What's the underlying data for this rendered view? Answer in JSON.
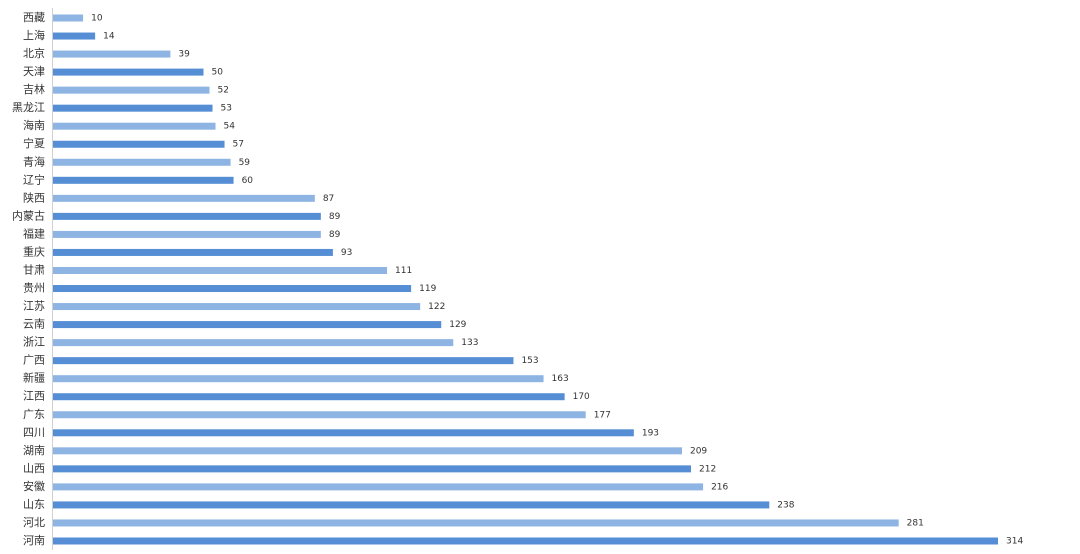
{
  "chart_data": {
    "type": "bar",
    "orientation": "horizontal",
    "categories": [
      "西藏",
      "上海",
      "北京",
      "天津",
      "吉林",
      "黑龙江",
      "海南",
      "宁夏",
      "青海",
      "辽宁",
      "陕西",
      "内蒙古",
      "福建",
      "重庆",
      "甘肃",
      "贵州",
      "江苏",
      "云南",
      "浙江",
      "广西",
      "新疆",
      "江西",
      "广东",
      "四川",
      "湖南",
      "山西",
      "安徽",
      "山东",
      "河北",
      "河南"
    ],
    "values": [
      10,
      14,
      39,
      50,
      52,
      53,
      54,
      57,
      59,
      60,
      87,
      89,
      89,
      93,
      111,
      119,
      122,
      129,
      133,
      153,
      163,
      170,
      177,
      193,
      209,
      212,
      216,
      238,
      281,
      314
    ],
    "colors": [
      "#8eb4e3",
      "#558ed5",
      "#8eb4e3",
      "#558ed5",
      "#8eb4e3",
      "#558ed5",
      "#8eb4e3",
      "#558ed5",
      "#8eb4e3",
      "#558ed5",
      "#8eb4e3",
      "#558ed5",
      "#8eb4e3",
      "#558ed5",
      "#8eb4e3",
      "#558ed5",
      "#8eb4e3",
      "#558ed5",
      "#8eb4e3",
      "#558ed5",
      "#8eb4e3",
      "#558ed5",
      "#8eb4e3",
      "#558ed5",
      "#8eb4e3",
      "#558ed5",
      "#8eb4e3",
      "#558ed5",
      "#8eb4e3",
      "#558ed5"
    ]
  }
}
